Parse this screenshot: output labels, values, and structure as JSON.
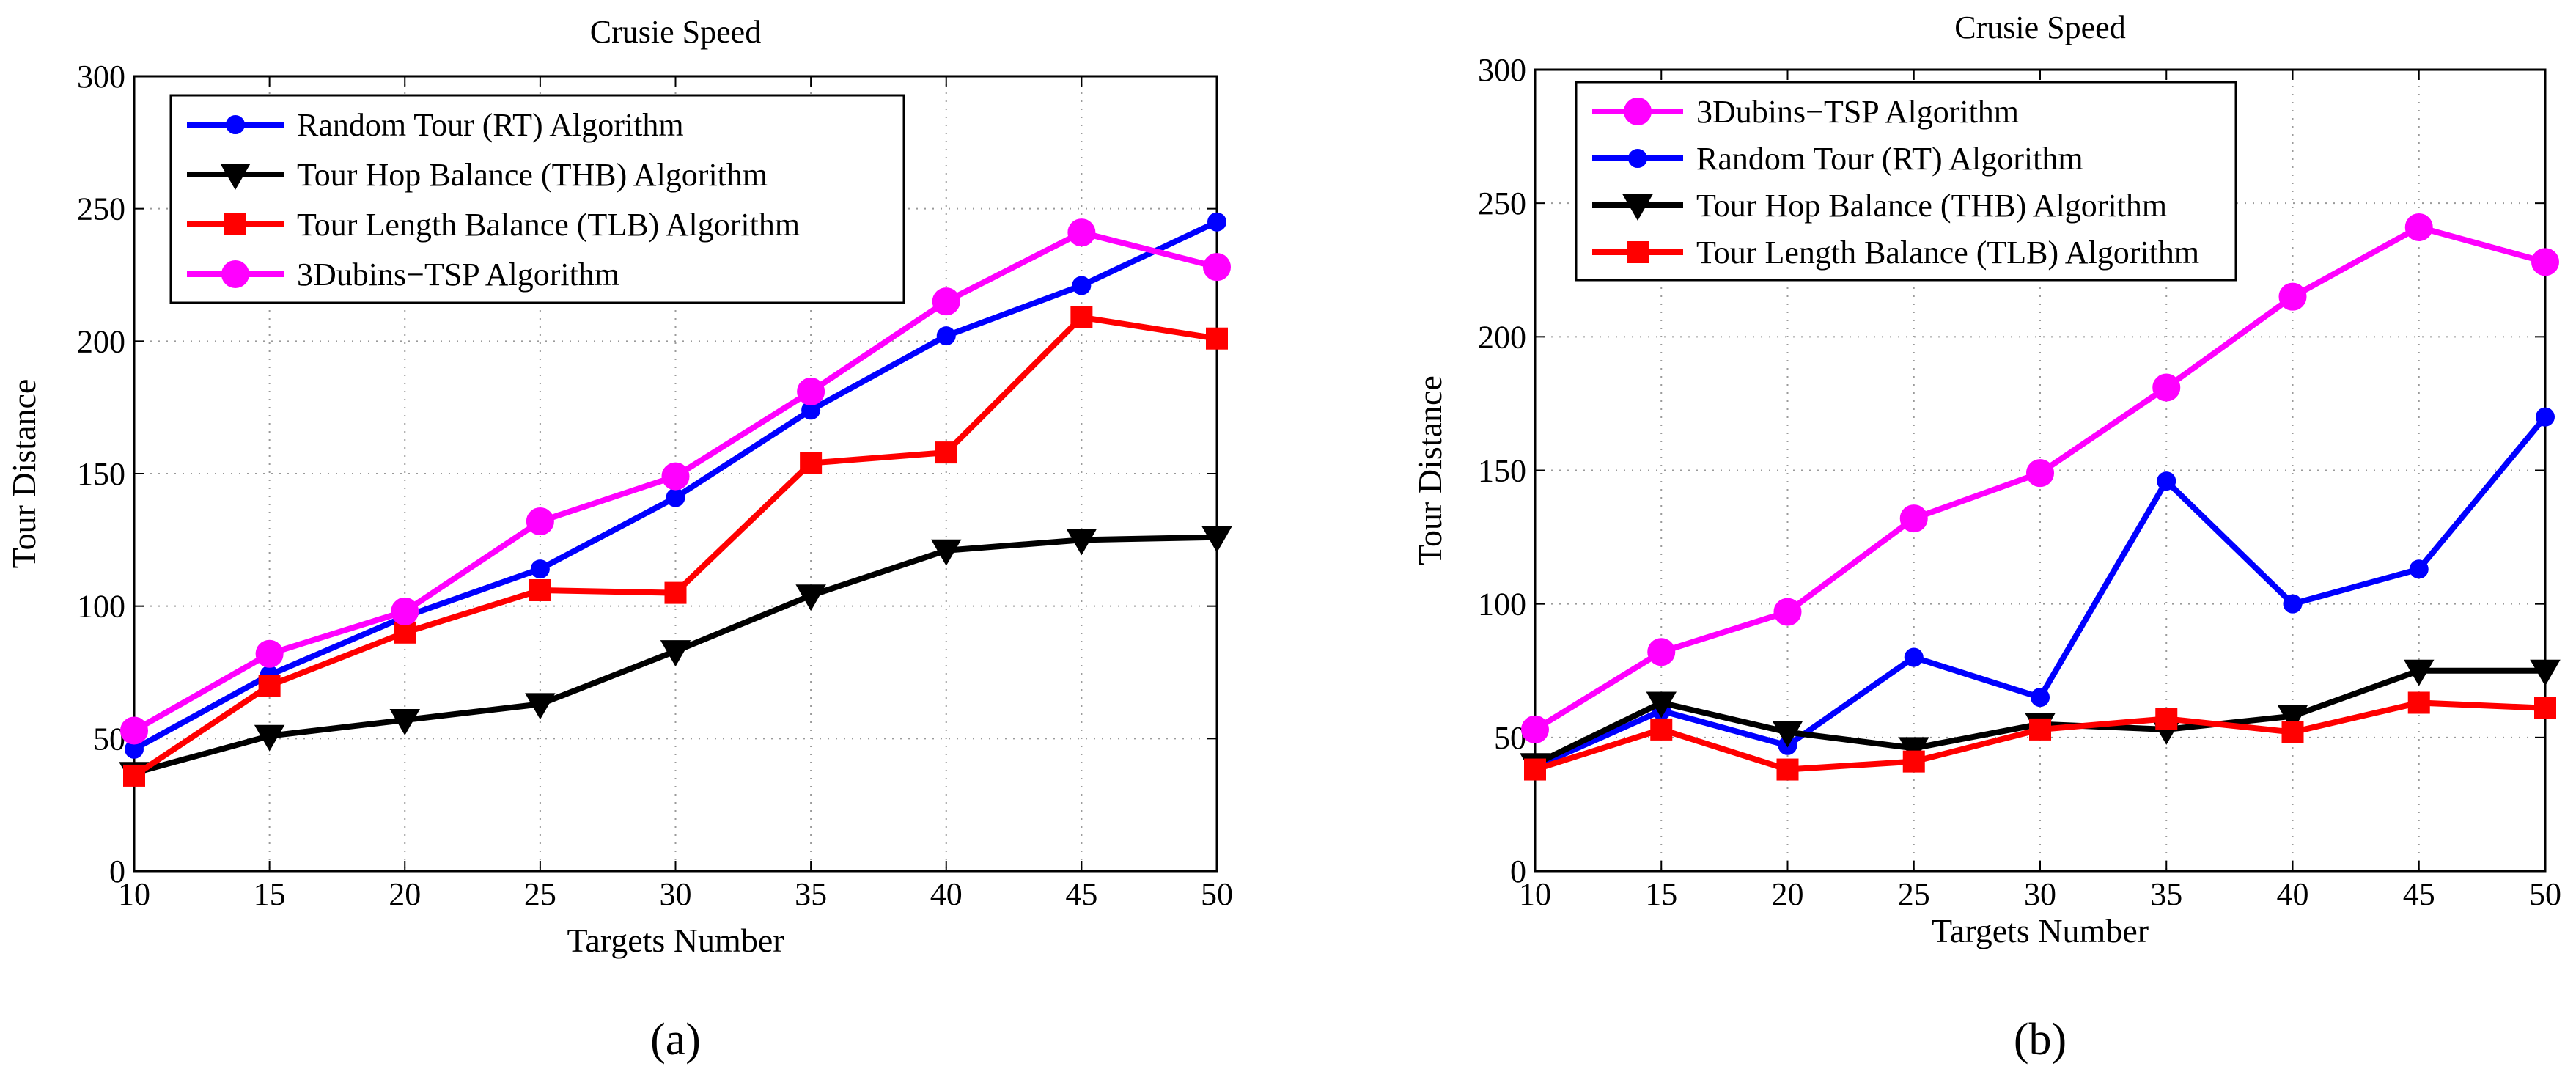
{
  "chart_data": [
    {
      "type": "line",
      "caption": "(a)",
      "title": "Crusie Speed",
      "xlabel": "Targets Number",
      "ylabel": "Tour Distance",
      "xlim": [
        10,
        50
      ],
      "ylim": [
        0,
        300
      ],
      "grid": true,
      "x": [
        10,
        15,
        20,
        25,
        30,
        35,
        40,
        45,
        50
      ],
      "xticks": [
        "10",
        "15",
        "20",
        "25",
        "30",
        "35",
        "40",
        "45",
        "50"
      ],
      "yticks": [
        "0",
        "50",
        "100",
        "150",
        "200",
        "250",
        "300"
      ],
      "legend_position": "top-left",
      "legend_order": [
        "Random Tour (RT) Algorithm",
        "Tour Hop Balance (THB) Algorithm",
        "Tour Length Balance (TLB) Algorithm",
        "3Dubins−TSP Algorithm"
      ],
      "series": [
        {
          "name": "Random Tour (RT) Algorithm",
          "color": "#0000ff",
          "marker": "dot",
          "values": [
            46,
            74,
            96,
            114,
            141,
            174,
            202,
            221,
            245
          ]
        },
        {
          "name": "Tour Hop Balance (THB) Algorithm",
          "color": "#000000",
          "marker": "triangle-down",
          "values": [
            37,
            51,
            57,
            63,
            83,
            104,
            121,
            125,
            126
          ]
        },
        {
          "name": "Tour Length Balance (TLB) Algorithm",
          "color": "#ff0000",
          "marker": "square",
          "values": [
            36,
            70,
            90,
            106,
            105,
            154,
            158,
            209,
            201
          ]
        },
        {
          "name": "3Dubins−TSP Algorithm",
          "color": "#ff00ff",
          "marker": "circle",
          "values": [
            53,
            82,
            98,
            132,
            149,
            181,
            215,
            241,
            228
          ]
        }
      ]
    },
    {
      "type": "line",
      "caption": "(b)",
      "title": "Crusie Speed",
      "xlabel": "Targets Number",
      "ylabel": "Tour Distance",
      "xlim": [
        10,
        50
      ],
      "ylim": [
        0,
        300
      ],
      "grid": true,
      "x": [
        10,
        15,
        20,
        25,
        30,
        35,
        40,
        45,
        50
      ],
      "xticks": [
        "10",
        "15",
        "20",
        "25",
        "30",
        "35",
        "40",
        "45",
        "50"
      ],
      "yticks": [
        "0",
        "50",
        "100",
        "150",
        "200",
        "250",
        "300"
      ],
      "legend_position": "top-left",
      "legend_order": [
        "3Dubins−TSP Algorithm",
        "Random Tour (RT) Algorithm",
        "Tour Hop Balance (THB) Algorithm",
        "Tour Length Balance (TLB) Algorithm"
      ],
      "series": [
        {
          "name": "3Dubins−TSP Algorithm",
          "color": "#ff00ff",
          "marker": "circle",
          "values": [
            53,
            82,
            97,
            132,
            149,
            181,
            215,
            241,
            228
          ]
        },
        {
          "name": "Random Tour (RT) Algorithm",
          "color": "#0000ff",
          "marker": "dot",
          "values": [
            39,
            60,
            47,
            80,
            65,
            146,
            100,
            113,
            170
          ]
        },
        {
          "name": "Tour Hop Balance (THB) Algorithm",
          "color": "#000000",
          "marker": "triangle-down",
          "values": [
            40,
            63,
            52,
            46,
            55,
            53,
            58,
            75,
            75
          ]
        },
        {
          "name": "Tour Length Balance (TLB) Algorithm",
          "color": "#ff0000",
          "marker": "square",
          "values": [
            38,
            53,
            38,
            41,
            53,
            57,
            52,
            63,
            61
          ]
        }
      ]
    }
  ]
}
